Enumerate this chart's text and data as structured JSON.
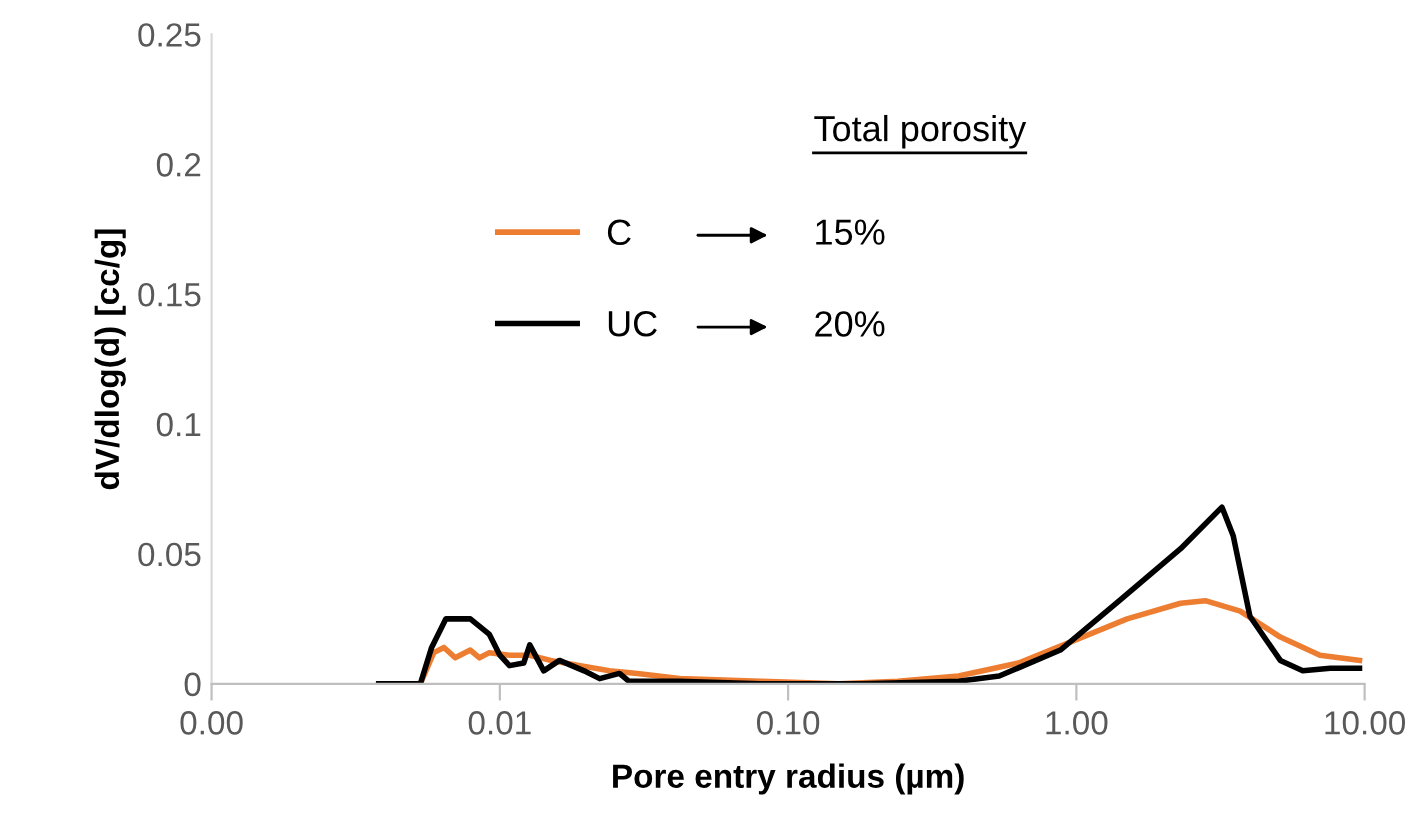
{
  "chart_data": {
    "type": "line",
    "xlabel": "Pore entry radius (µm)",
    "ylabel": "dV/dlog(d) [cc/g]",
    "log": "x",
    "xlim": [
      0.001,
      10
    ],
    "xticks": [
      {
        "value": 0.001,
        "label": "0.00"
      },
      {
        "value": 0.01,
        "label": "0.01"
      },
      {
        "value": 0.1,
        "label": "0.10"
      },
      {
        "value": 1,
        "label": "1.00"
      },
      {
        "value": 10,
        "label": "10.00"
      }
    ],
    "ylim": [
      0,
      0.25
    ],
    "yticks": [
      0,
      0.05,
      0.1,
      0.15,
      0.2,
      0.25
    ],
    "legend": "top",
    "grid": false,
    "series": [
      {
        "name": "C",
        "color": "#ed7d31",
        "x": [
          0.0038,
          0.0053,
          0.0059,
          0.0064,
          0.007,
          0.0079,
          0.0085,
          0.0092,
          0.0108,
          0.0127,
          0.015,
          0.019,
          0.024,
          0.03,
          0.042,
          0.08,
          0.15,
          0.24,
          0.39,
          0.63,
          1.0,
          1.5,
          2.3,
          2.8,
          3.7,
          5.1,
          7.0,
          9.6
        ],
        "values": [
          0,
          0,
          0.012,
          0.014,
          0.01,
          0.013,
          0.01,
          0.012,
          0.011,
          0.011,
          0.009,
          0.007,
          0.005,
          0.004,
          0.002,
          0.001,
          0,
          0.001,
          0.003,
          0.008,
          0.017,
          0.025,
          0.031,
          0.032,
          0.028,
          0.018,
          0.011,
          0.009
        ]
      },
      {
        "name": "UC",
        "color": "#000000",
        "x": [
          0.0038,
          0.0053,
          0.0058,
          0.0065,
          0.0079,
          0.0092,
          0.01,
          0.0108,
          0.0121,
          0.0127,
          0.0142,
          0.0161,
          0.0196,
          0.0222,
          0.026,
          0.028,
          0.042,
          0.08,
          0.18,
          0.39,
          0.54,
          0.88,
          1.41,
          2.3,
          3.2,
          3.5,
          4.0,
          5.1,
          6.1,
          7.6,
          9.6
        ],
        "values": [
          0,
          0,
          0.014,
          0.025,
          0.025,
          0.019,
          0.011,
          0.007,
          0.008,
          0.015,
          0.005,
          0.009,
          0.005,
          0.002,
          0.004,
          0.001,
          0.001,
          0,
          0,
          0.001,
          0.003,
          0.013,
          0.032,
          0.052,
          0.068,
          0.057,
          0.026,
          0.009,
          0.005,
          0.006,
          0.006
        ]
      }
    ],
    "annotations": [
      "Total porosity",
      "15%",
      "20%"
    ]
  }
}
